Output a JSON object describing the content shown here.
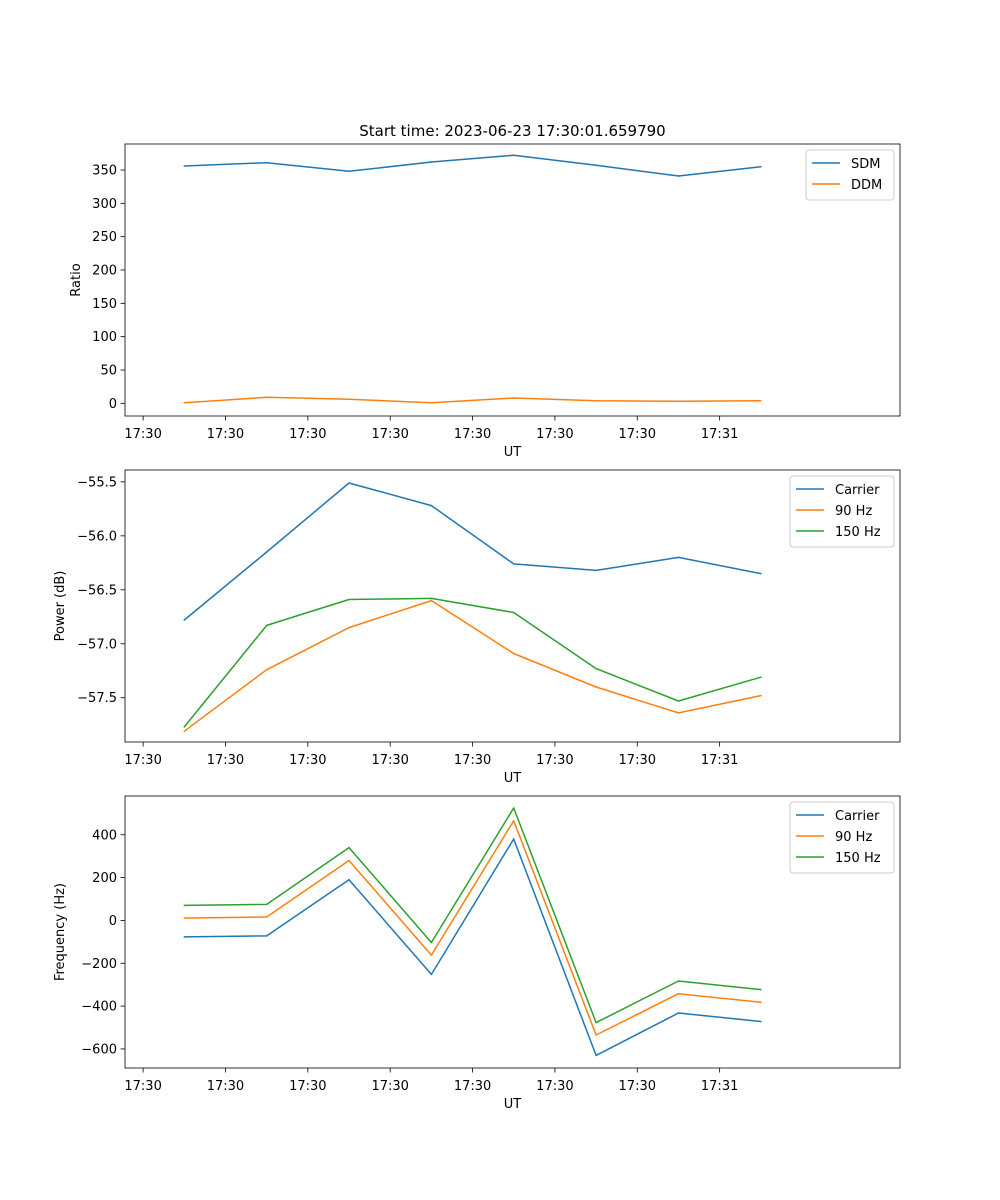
{
  "figure": {
    "title": "Start time: 2023-06-23 17:30:01.659790"
  },
  "colors": {
    "blue": "#1f77b4",
    "orange": "#ff7f0e",
    "green": "#2ca02c",
    "axis": "#000000",
    "legend_border": "#cccccc"
  },
  "chart_data": [
    {
      "type": "line",
      "title": "Start time: 2023-06-23 17:30:01.659790",
      "xlabel": "UT",
      "ylabel": "Ratio",
      "xticks": [
        "17:30",
        "17:30",
        "17:30",
        "17:30",
        "17:30",
        "17:30",
        "17:30",
        "17:31"
      ],
      "xrange": [
        -0.22,
        9.19
      ],
      "x": [
        0.5,
        1.5,
        2.5,
        3.5,
        4.5,
        5.5,
        6.5,
        7.5
      ],
      "yticks": [
        0,
        50,
        100,
        150,
        200,
        250,
        300,
        350
      ],
      "ylim": [
        -19,
        389
      ],
      "legend": "top-right",
      "grid": false,
      "series": [
        {
          "name": "SDM",
          "color": "blue",
          "values": [
            356,
            361,
            348,
            362,
            372,
            357,
            341,
            355
          ]
        },
        {
          "name": "DDM",
          "color": "orange",
          "values": [
            1,
            9,
            6,
            1,
            8,
            4,
            3,
            4
          ]
        }
      ]
    },
    {
      "type": "line",
      "xlabel": "UT",
      "ylabel": "Power (dB)",
      "xticks": [
        "17:30",
        "17:30",
        "17:30",
        "17:30",
        "17:30",
        "17:30",
        "17:30",
        "17:31"
      ],
      "xrange": [
        -0.22,
        9.19
      ],
      "x": [
        0.5,
        1.5,
        2.5,
        3.5,
        4.5,
        5.5,
        6.5,
        7.5
      ],
      "yticks": [
        -57.5,
        -57.0,
        -56.5,
        -56.0,
        -55.5
      ],
      "ytick_labels": [
        "−57.5",
        "−57.0",
        "−56.5",
        "−56.0",
        "−55.5"
      ],
      "ylim": [
        -57.91,
        -55.39
      ],
      "legend": "top-right",
      "grid": false,
      "series": [
        {
          "name": "Carrier",
          "color": "blue",
          "values": [
            -56.78,
            -56.15,
            -55.51,
            -55.72,
            -56.26,
            -56.32,
            -56.2,
            -56.35
          ]
        },
        {
          "name": "90 Hz",
          "color": "orange",
          "values": [
            -57.81,
            -57.24,
            -56.85,
            -56.6,
            -57.09,
            -57.4,
            -57.64,
            -57.48
          ]
        },
        {
          "name": "150 Hz",
          "color": "green",
          "values": [
            -57.77,
            -56.83,
            -56.59,
            -56.58,
            -56.71,
            -57.23,
            -57.53,
            -57.31
          ]
        }
      ]
    },
    {
      "type": "line",
      "xlabel": "UT",
      "ylabel": "Frequency (Hz)",
      "xticks": [
        "17:30",
        "17:30",
        "17:30",
        "17:30",
        "17:30",
        "17:30",
        "17:30",
        "17:31"
      ],
      "xrange": [
        -0.22,
        9.19
      ],
      "x": [
        0.5,
        1.5,
        2.5,
        3.5,
        4.5,
        5.5,
        6.5,
        7.5
      ],
      "yticks": [
        -600,
        -400,
        -200,
        0,
        200,
        400
      ],
      "ytick_labels": [
        "−600",
        "−400",
        "−200",
        "0",
        "200",
        "400"
      ],
      "ylim": [
        -689,
        581
      ],
      "legend": "top-right",
      "grid": false,
      "series": [
        {
          "name": "Carrier",
          "color": "blue",
          "values": [
            -77,
            -72,
            190,
            -252,
            380,
            -630,
            -432,
            -472
          ]
        },
        {
          "name": "90 Hz",
          "color": "orange",
          "values": [
            11,
            16,
            280,
            -162,
            465,
            -535,
            -342,
            -382
          ]
        },
        {
          "name": "150 Hz",
          "color": "green",
          "values": [
            70,
            75,
            340,
            -103,
            525,
            -477,
            -283,
            -323
          ]
        }
      ]
    }
  ]
}
